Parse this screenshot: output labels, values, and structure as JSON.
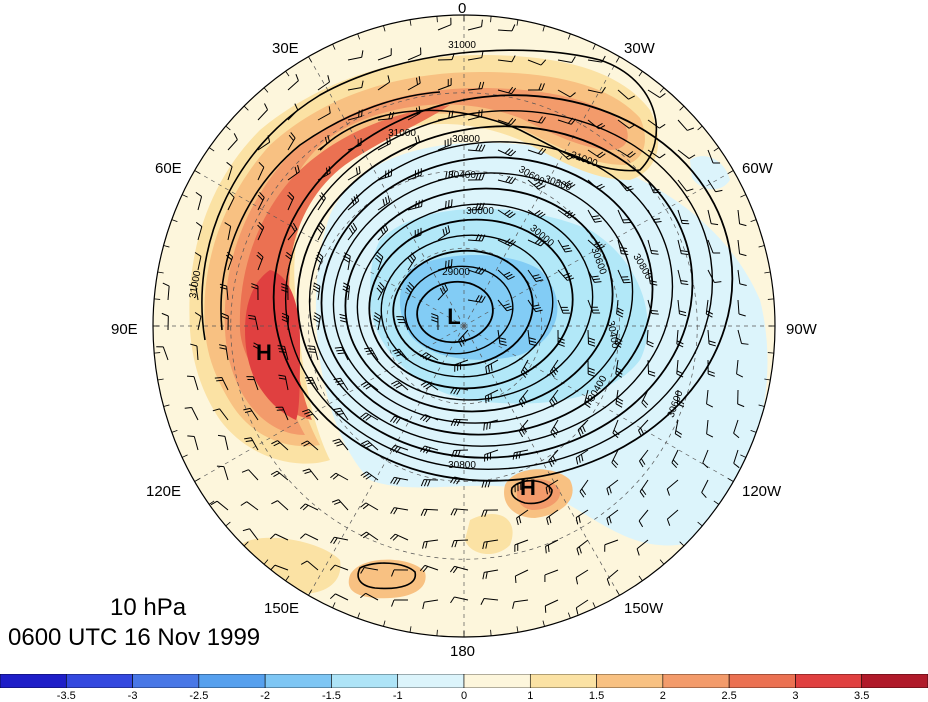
{
  "map": {
    "projection": "north-polar-stereographic",
    "level_label": "10 hPa",
    "time_label": "0600 UTC 16 Nov 1999",
    "longitude_labels": [
      "0",
      "30W",
      "60W",
      "90W",
      "120W",
      "150W",
      "180",
      "150E",
      "120E",
      "90E",
      "60E",
      "30E"
    ],
    "centers": [
      {
        "label": "L",
        "kind": "low"
      },
      {
        "label": "H",
        "kind": "high"
      },
      {
        "label": "H",
        "kind": "high"
      }
    ],
    "contour_labels": [
      "31000",
      "31000",
      "31000",
      "31000",
      "31000",
      "30800",
      "30800",
      "30800",
      "30800",
      "30400",
      "30400",
      "30400",
      "30000",
      "30000",
      "29000",
      "30600",
      "30600",
      "30600"
    ],
    "shading_colors": {
      "neg_3_5": "#2020c8",
      "neg_3": "#3c50e0",
      "neg_2_5": "#4a86ea",
      "neg_2": "#5aaaf0",
      "neg_1_5": "#82ccf5",
      "neg_1": "#b2e8f8",
      "neg_0": "#dcf4fb",
      "pos_0": "#fdf6dc",
      "pos_1": "#fbe2a4",
      "pos_1_5": "#f8c182",
      "pos_2": "#f39b6b",
      "pos_2_5": "#eb7152",
      "pos_3": "#e04040",
      "pos_3_5": "#b01a2a"
    }
  },
  "colorbar": {
    "labels": [
      "-3.5",
      "-3",
      "-2.5",
      "-2",
      "-1.5",
      "-1",
      "0",
      "1",
      "1.5",
      "2",
      "2.5",
      "3",
      "3.5"
    ],
    "colors": [
      "#1e1ec8",
      "#3348df",
      "#4877e6",
      "#56a0ee",
      "#7ec6f4",
      "#aee4f7",
      "#dcf4fb",
      "#fdf6dc",
      "#fbe2a4",
      "#f8c182",
      "#f39b6b",
      "#eb7152",
      "#e04040",
      "#b01a2a"
    ]
  }
}
